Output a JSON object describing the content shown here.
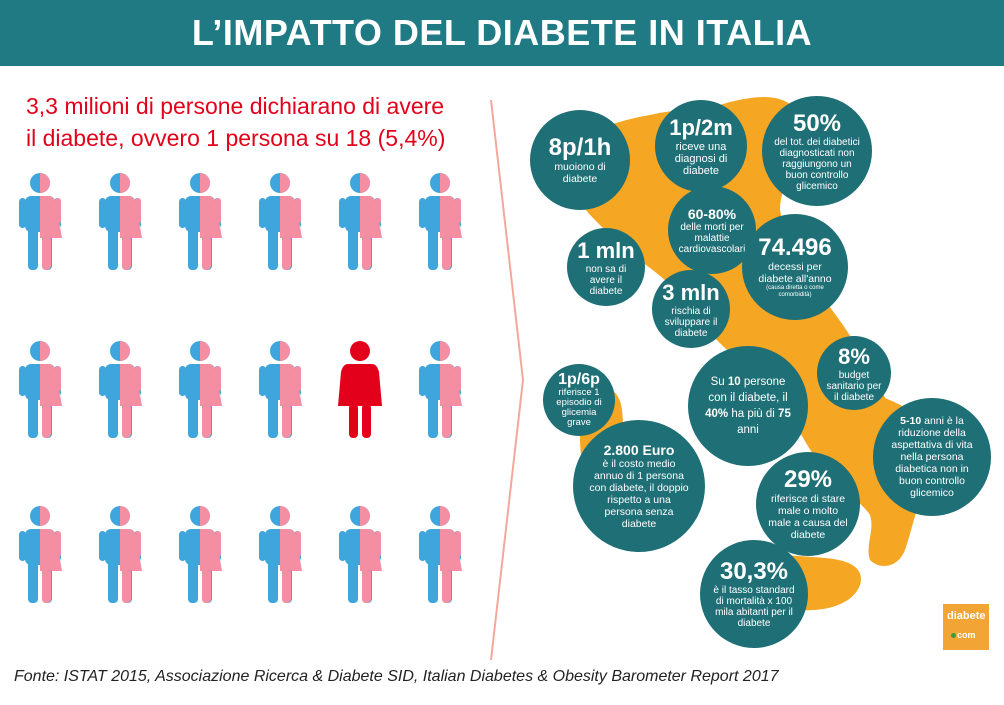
{
  "title": "L’IMPATTO DEL DIABETE IN ITALIA",
  "headline": {
    "line1": "3,3 milioni di persone dichiarano di avere",
    "line2": "il diabete, ovvero 1 persona su 18  (5,4%)"
  },
  "colors": {
    "header": "#1f7a84",
    "blue": "#3fa6dd",
    "pink": "#f48fa3",
    "red": "#e3001b",
    "bubble": "#1f6f76",
    "map": "#f5a623"
  },
  "people": {
    "rows": 3,
    "cols": 6,
    "highlighted": [
      1,
      4
    ]
  },
  "bubbles": {
    "b1": {
      "big": "8p/1h",
      "text": "muoiono di diabete"
    },
    "b2": {
      "big": "1p/2m",
      "text": "riceve una diagnosi di diabete"
    },
    "b3": {
      "big": "50%",
      "text": "del tot. dei diabetici diagnosticati non raggiungono un buon controllo glicemico"
    },
    "b4": {
      "mid": "60-80%",
      "text": "delle morti per malattie cardiovascolari"
    },
    "b5": {
      "big": "1 mln",
      "text": "non sa di avere il diabete"
    },
    "b6": {
      "big": "74.496",
      "text": "decessi per diabete all'anno",
      "small": "(causa diretta o come comorbidità)"
    },
    "b7": {
      "big": "3 mln",
      "text": "rischia di sviluppare il diabete"
    },
    "b8": {
      "big": "8%",
      "text": "budget sanitario per il diabete"
    },
    "b9": {
      "big": "1p/6p",
      "text": "riferisce 1 episodio di glicemia grave"
    },
    "b10": {
      "t1": "Su ",
      "n1": "10",
      "t2": " persone con il diabete, il ",
      "n2": "40%",
      "t3": " ha più di ",
      "n3": "75",
      "t4": " anni"
    },
    "b11": {
      "mid": "5-10",
      "text": " anni è la riduzione della aspettativa di vita nella persona diabetica non in buon controllo glicemico"
    },
    "b12": {
      "mid": "2.800 Euro",
      "text": "è il costo medio annuo di 1 persona con diabete, il doppio rispetto a una persona senza diabete"
    },
    "b13": {
      "big": "29%",
      "text": "riferisce di stare male o molto male a causa del diabete"
    },
    "b14": {
      "big": "30,3%",
      "text": "è il tasso standard di mortalità x 100 mila abitanti per il diabete"
    }
  },
  "logo": {
    "top": "diabete",
    "bottom": "com"
  },
  "source": "Fonte: ISTAT 2015, Associazione Ricerca & Diabete SID, Italian Diabetes & Obesity Barometer Report 2017"
}
